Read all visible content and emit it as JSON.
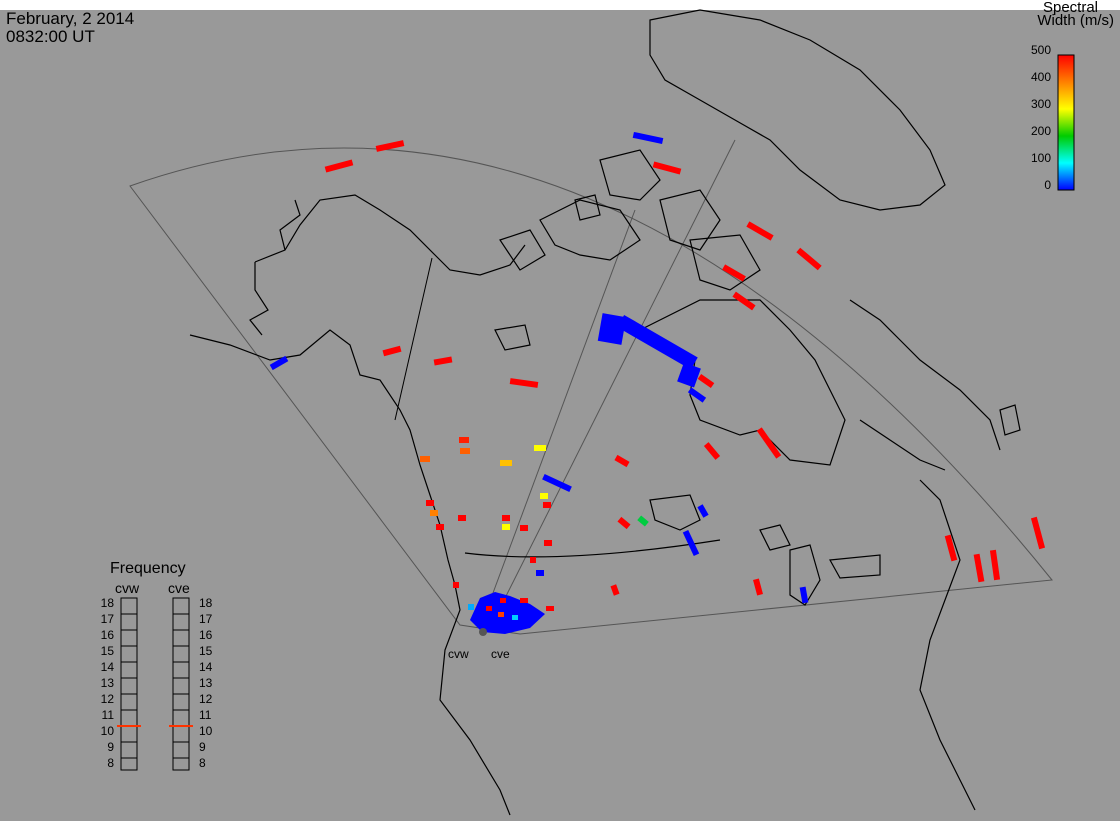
{
  "header": {
    "date": "February, 2 2014",
    "time": "0832:00 UT"
  },
  "colorbar": {
    "title_line1": "Spectral",
    "title_line2": "Width (m/s)",
    "ticks": [
      "500",
      "400",
      "300",
      "200",
      "100",
      "0"
    ],
    "gradient": [
      "#ff0000",
      "#ff8000",
      "#ffff00",
      "#00cc00",
      "#00ffff",
      "#0000ff"
    ]
  },
  "frequency_panel": {
    "title": "Frequency",
    "radars": [
      "cvw",
      "cve"
    ],
    "levels": [
      "18",
      "17",
      "16",
      "15",
      "14",
      "13",
      "12",
      "11",
      "10",
      "9",
      "8"
    ],
    "cvw_marker": 10.5,
    "cve_marker": 10.5,
    "marker_color": "#ff3300"
  },
  "stations": [
    "cvw",
    "cve"
  ],
  "colors": {
    "background": "#999999",
    "coast": "#000000",
    "fov": "#555555"
  }
}
